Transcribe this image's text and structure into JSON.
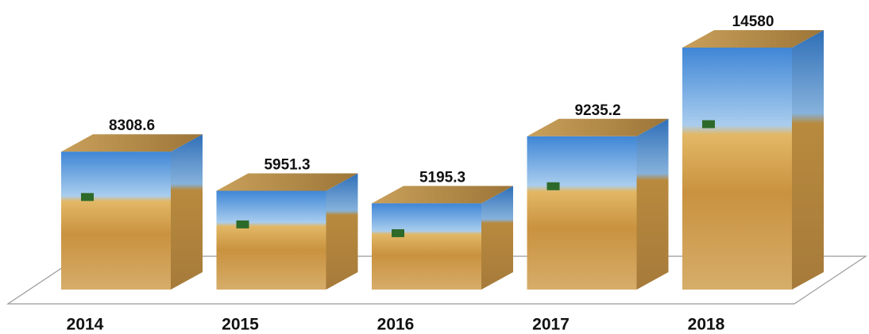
{
  "chart_data": {
    "type": "bar",
    "categories": [
      "2014",
      "2015",
      "2016",
      "2017",
      "2018"
    ],
    "values": [
      8308.6,
      5951.3,
      5195.3,
      9235.2,
      14580
    ]
  }
}
